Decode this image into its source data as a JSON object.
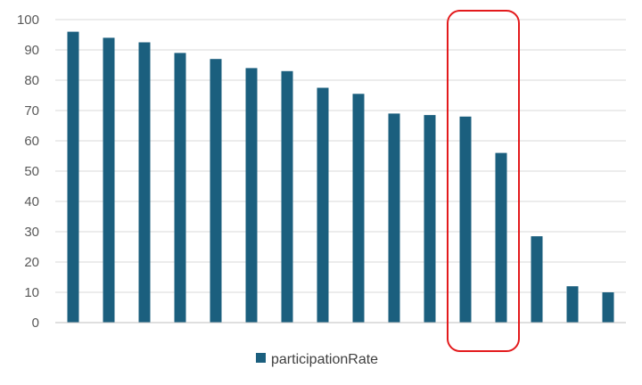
{
  "chart_data": {
    "type": "bar",
    "categories": [
      "",
      "",
      "",
      "",
      "",
      "",
      "",
      "",
      "",
      "",
      "",
      "",
      "",
      "",
      "",
      ""
    ],
    "series": [
      {
        "name": "participationRate",
        "values": [
          96,
          94,
          92.5,
          89,
          87,
          84,
          83,
          77.5,
          75.5,
          69,
          68.5,
          68,
          56,
          28.5,
          12,
          10
        ],
        "color": "#1b5f7e"
      }
    ],
    "title": "",
    "xlabel": "",
    "ylabel": "",
    "ylim": [
      0,
      100
    ],
    "yticks": [
      0,
      10,
      20,
      30,
      40,
      50,
      60,
      70,
      80,
      90,
      100
    ],
    "grid": true,
    "legend": {
      "position": "bottom",
      "entries": [
        "participationRate"
      ]
    },
    "annotations": [
      {
        "type": "rounded-rectangle-highlight",
        "category_indices": [
          11,
          12
        ],
        "color": "#e31a1c"
      }
    ]
  }
}
